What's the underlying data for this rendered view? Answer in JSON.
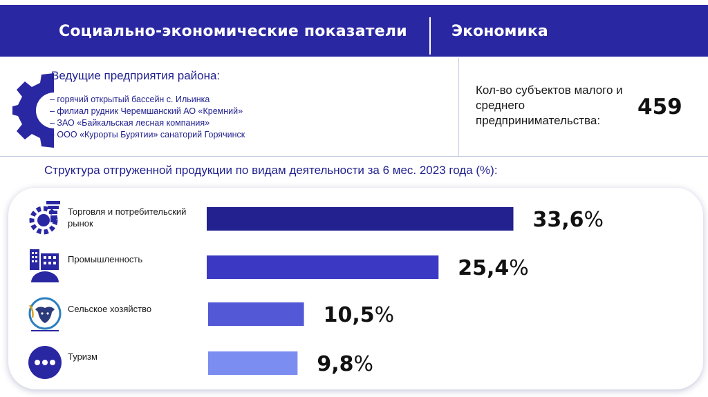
{
  "header": {
    "title": "Социально-экономические показатели",
    "section": "Экономика"
  },
  "enterprises": {
    "title": "Ведущие предприятия района:",
    "items": [
      "– горячий открытый бассейн с. Ильинка",
      "– филиал рудник Черемшанский АО «Кремний»",
      "– ЗАО «Байкальская лесная компания»",
      "– ООО «Курорты Бурятии» санаторий Горячинск"
    ]
  },
  "sme": {
    "label": "Кол-во субъектов малого и среднего предпринимательства:",
    "value": "459"
  },
  "chart_title": "Структура отгруженной продукции по видам деятельности за 6 мес. 2023 года (%):",
  "chart_data": {
    "type": "bar",
    "orientation": "horizontal",
    "title": "Структура отгруженной продукции по видам деятельности за 6 мес. 2023 года (%):",
    "categories": [
      "Торговля и потребительский рынок",
      "Промышленность",
      "Сельское хозяйство",
      "Туризм"
    ],
    "values": [
      33.6,
      25.4,
      10.5,
      9.8
    ],
    "value_labels": [
      "33,6",
      "25,4",
      "10,5",
      "9,8"
    ],
    "unit": "%",
    "colors": [
      "#23208f",
      "#3b38c4",
      "#5358d6",
      "#7b8df0"
    ],
    "icons": [
      "gear-trade-icon",
      "factory-icon",
      "cow-icon",
      "dots-circle-icon"
    ]
  }
}
